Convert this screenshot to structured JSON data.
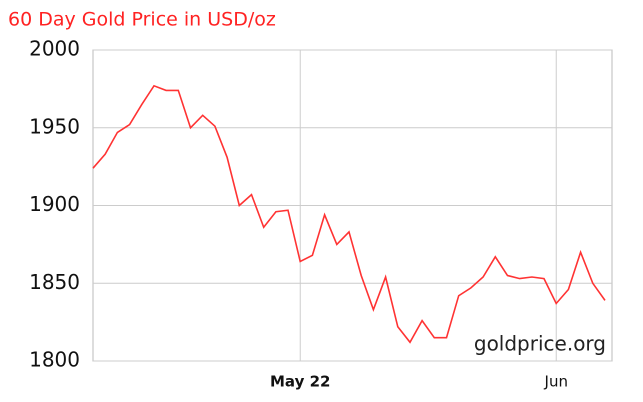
{
  "chart_data": {
    "type": "line",
    "title": "60 Day Gold Price in USD/oz",
    "watermark": "goldprice.org",
    "categories": [
      null,
      null,
      null,
      null,
      null,
      null,
      null,
      null,
      null,
      null,
      null,
      null,
      null,
      null,
      null,
      null,
      null,
      "May 22",
      null,
      null,
      null,
      null,
      null,
      null,
      null,
      null,
      null,
      null,
      null,
      null,
      null,
      null,
      null,
      null,
      null,
      null,
      null,
      null,
      "Jun",
      null,
      null,
      null,
      null
    ],
    "series": [
      {
        "name": "Gold",
        "color": "#ff3333",
        "values": [
          1924,
          1933,
          1947,
          1952,
          1965,
          1977,
          1974,
          1974,
          1950,
          1958,
          1951,
          1931,
          1900,
          1907,
          1886,
          1896,
          1897,
          1864,
          1868,
          1894,
          1875,
          1883,
          1855,
          1833,
          1854,
          1822,
          1812,
          1826,
          1815,
          1815,
          1842,
          1847,
          1854,
          1867,
          1855,
          1853,
          1854,
          1853,
          1837,
          1846,
          1870,
          1850,
          1839
        ]
      }
    ],
    "ylim": [
      1800,
      2000
    ],
    "yticks": [
      1800,
      1850,
      1900,
      1950,
      2000
    ],
    "grid": true
  }
}
